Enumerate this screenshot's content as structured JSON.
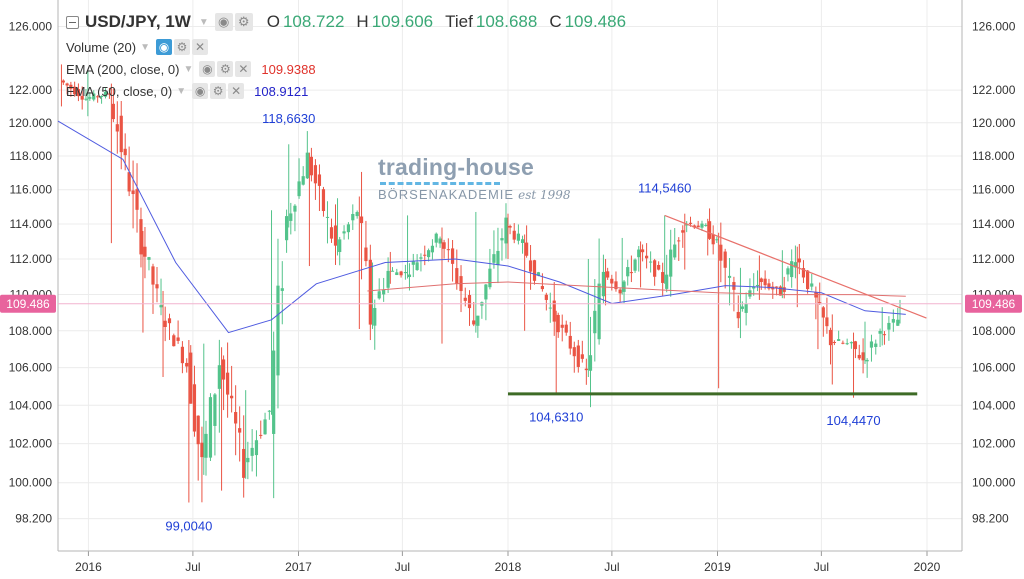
{
  "legend": {
    "symbol": "USD/JPY, 1W",
    "open_label": "O",
    "open_value": "108.722",
    "high_label": "H",
    "high_value": "109.606",
    "low_label": "Tief",
    "low_value": "108.688",
    "close_label": "C",
    "close_value": "109.486",
    "volume_label": "Volume (20)",
    "ema200_label": "EMA (200, close, 0)",
    "ema200_value": "109.9388",
    "ema50_label": "EMA (50, close, 0)",
    "ema50_value": "108.9121"
  },
  "icons": [
    "collapse-icon",
    "eye-icon",
    "gear-icon",
    "close-icon",
    "chevron-down-icon"
  ],
  "watermark": {
    "title": "trading-house",
    "subtitle": "BÖRSENAKADEMIE",
    "est": "est 1998"
  },
  "colors": {
    "up": "#53c38b",
    "down": "#ea5444",
    "ema50": "#4f5be0",
    "ema200": "#e07070",
    "trendline": "#e8706a",
    "support": "#3e6b26",
    "annotation": "#1f3fd6",
    "price_badge": "#e8639d",
    "grid": "#ececec",
    "axis_text": "#333333"
  },
  "chart_data": {
    "type": "candlestick",
    "title": "USD/JPY, 1W",
    "x_tick_labels": [
      "2016",
      "Jul",
      "2017",
      "Jul",
      "2018",
      "Jul",
      "2019",
      "Jul",
      "2020"
    ],
    "x_ticks": [
      "2016-01-01",
      "2016-07-01",
      "2017-01-01",
      "2017-07-01",
      "2018-01-01",
      "2018-07-01",
      "2019-01-01",
      "2019-07-01",
      "2020-01-01"
    ],
    "x_range": [
      "2015-11-09",
      "2020-03-02"
    ],
    "y_tick_labels": [
      "126.000",
      "122.000",
      "120.000",
      "118.000",
      "116.000",
      "114.000",
      "112.000",
      "110.000",
      "108.000",
      "106.000",
      "104.000",
      "102.000",
      "100.000",
      "98.200"
    ],
    "y_ticks": [
      126.0,
      122.0,
      120.0,
      118.0,
      116.0,
      114.0,
      112.0,
      110.0,
      108.0,
      106.0,
      104.0,
      102.0,
      100.0,
      98.2
    ],
    "y_range": [
      96.6,
      127.7
    ],
    "y_scale": "log",
    "grid": true,
    "price_badge": {
      "value": 109.486,
      "label": "109.486"
    },
    "annotations": [
      {
        "text": "118,6630",
        "date": "2016-12-15",
        "value": 118.663,
        "position": "above"
      },
      {
        "text": "99,0040",
        "date": "2016-06-24",
        "value": 99.004,
        "position": "below"
      },
      {
        "text": "114,5460",
        "date": "2018-10-01",
        "value": 114.546,
        "position": "above"
      },
      {
        "text": "104,6310",
        "date": "2018-03-26",
        "value": 104.631,
        "position": "below"
      },
      {
        "text": "104,4470",
        "date": "2019-08-26",
        "value": 104.447,
        "position": "below"
      }
    ],
    "lines": [
      {
        "name": "support",
        "from": {
          "date": "2018-01-01",
          "value": 104.6
        },
        "to": {
          "date": "2019-12-15",
          "value": 104.6
        }
      },
      {
        "name": "trendline",
        "from": {
          "date": "2018-10-01",
          "value": 114.5
        },
        "to": {
          "date": "2019-12-31",
          "value": 108.7
        }
      }
    ],
    "series": [
      {
        "name": "USD/JPY",
        "type": "candlestick",
        "x": [
          "2015-11-15",
          "2015-12-31",
          "2016-02-10",
          "2016-04-05",
          "2016-05-10",
          "2016-06-24",
          "2016-07-20",
          "2016-08-20",
          "2016-10-01",
          "2016-11-15",
          "2016-12-15",
          "2017-01-20",
          "2017-03-10",
          "2017-04-17",
          "2017-05-10",
          "2017-06-10",
          "2017-07-10",
          "2017-09-08",
          "2017-11-06",
          "2018-01-01",
          "2018-01-30",
          "2018-03-26",
          "2018-05-21",
          "2018-06-20",
          "2018-07-19",
          "2018-08-20",
          "2018-10-01",
          "2018-11-05",
          "2018-12-15",
          "2019-01-03",
          "2019-02-10",
          "2019-03-15",
          "2019-04-24",
          "2019-05-20",
          "2019-06-25",
          "2019-07-20",
          "2019-08-26",
          "2019-09-15",
          "2019-10-15",
          "2019-11-15"
        ],
        "open": [
          122.6,
          121.5,
          121.8,
          113.1,
          109.0,
          106.2,
          100.8,
          106.4,
          100.9,
          103.7,
          114.2,
          117.9,
          112.6,
          114.8,
          108.8,
          111.3,
          111.2,
          113.4,
          108.4,
          114.0,
          112.8,
          108.7,
          105.7,
          111.4,
          110.3,
          112.4,
          110.8,
          114.1,
          113.8,
          112.8,
          108.9,
          110.8,
          110.1,
          112.3,
          109.6,
          107.5,
          107.2,
          106.4,
          107.9,
          108.6
        ],
        "close": [
          121.5,
          121.8,
          113.1,
          109.0,
          106.2,
          100.8,
          106.4,
          100.9,
          103.7,
          114.2,
          117.9,
          112.6,
          114.8,
          108.8,
          111.3,
          111.2,
          113.4,
          108.4,
          114.0,
          112.8,
          108.7,
          105.7,
          111.4,
          110.3,
          112.4,
          110.8,
          114.1,
          113.8,
          112.8,
          108.9,
          110.8,
          110.1,
          112.3,
          109.6,
          107.5,
          107.2,
          106.4,
          107.9,
          108.6,
          109.5
        ],
        "high": [
          123.6,
          123.2,
          122.4,
          113.6,
          110.2,
          107.5,
          107.3,
          107.1,
          104.8,
          114.8,
          118.7,
          118.2,
          115.5,
          115.6,
          111.8,
          112.4,
          114.5,
          113.8,
          114.7,
          114.6,
          113.4,
          109.1,
          112.0,
          112.0,
          113.2,
          113.0,
          114.5,
          114.6,
          114.3,
          113.5,
          111.5,
          112.2,
          112.5,
          112.7,
          110.1,
          108.9,
          107.9,
          108.5,
          109.3,
          109.7
        ],
        "low": [
          121.0,
          120.4,
          112.9,
          107.9,
          105.5,
          99.0,
          100.4,
          99.6,
          100.2,
          103.5,
          113.8,
          111.6,
          112.2,
          108.1,
          108.1,
          110.6,
          110.9,
          107.3,
          107.9,
          112.0,
          108.0,
          104.6,
          105.5,
          109.4,
          110.0,
          110.4,
          110.6,
          111.4,
          112.2,
          104.9,
          107.6,
          109.7,
          109.8,
          109.3,
          107.0,
          105.1,
          104.4,
          106.2,
          107.2,
          108.4
        ]
      },
      {
        "name": "EMA (50, close, 0)",
        "type": "line",
        "x": [
          "2015-11-09",
          "2016-03-01",
          "2016-06-01",
          "2016-09-01",
          "2016-11-15",
          "2017-02-01",
          "2017-06-01",
          "2017-10-01",
          "2018-01-01",
          "2018-04-01",
          "2018-07-01",
          "2018-10-15",
          "2019-01-15",
          "2019-04-01",
          "2019-07-01",
          "2019-09-15",
          "2019-11-25"
        ],
        "y": [
          120.1,
          117.8,
          111.8,
          107.9,
          108.6,
          110.6,
          111.8,
          112.0,
          111.6,
          110.7,
          109.5,
          110.0,
          110.5,
          110.4,
          110.1,
          109.1,
          108.9
        ]
      },
      {
        "name": "EMA (200, close, 0)",
        "type": "line",
        "x": [
          "2017-05-01",
          "2017-10-01",
          "2018-01-01",
          "2018-05-01",
          "2018-09-01",
          "2019-01-01",
          "2019-05-01",
          "2019-09-01",
          "2019-11-25"
        ],
        "y": [
          110.2,
          110.6,
          110.7,
          110.5,
          110.3,
          110.1,
          110.0,
          110.0,
          109.9
        ]
      }
    ]
  }
}
